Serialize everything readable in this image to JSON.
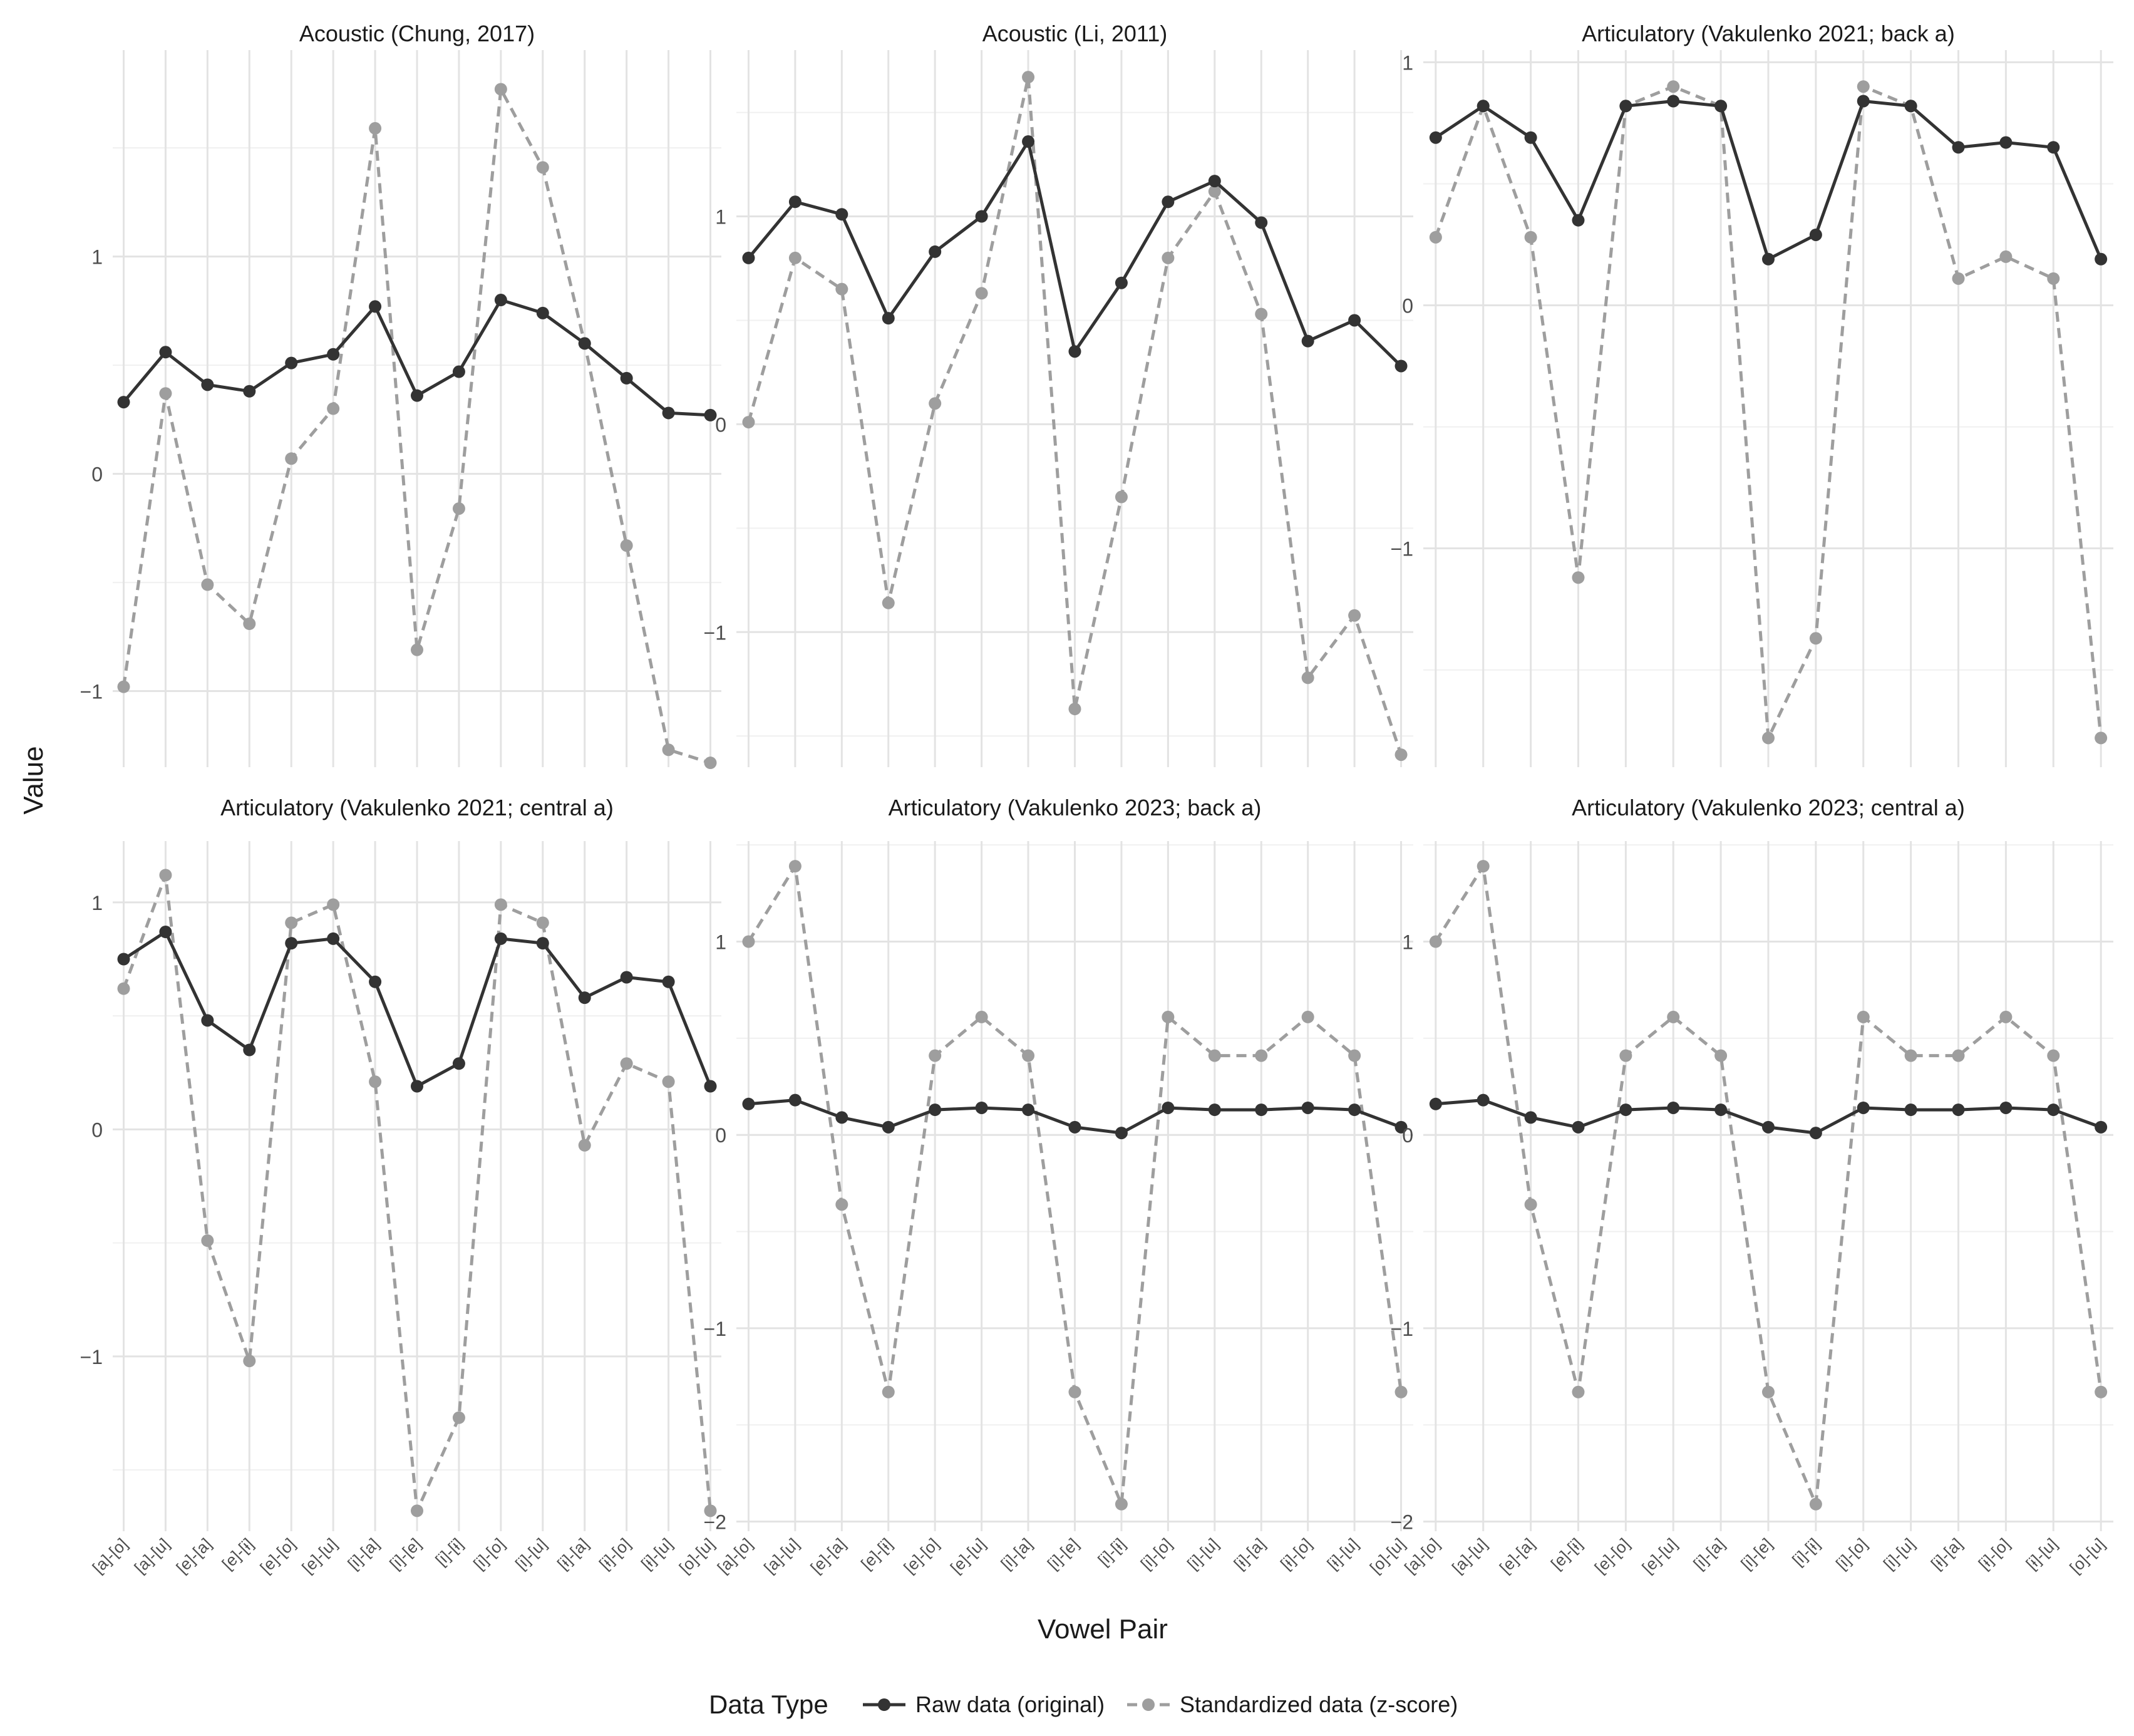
{
  "figure": {
    "ylabel": "Value",
    "xlabel": "Vowel Pair",
    "legend_title": "Data Type",
    "legend": [
      {
        "label": "Raw data (original)",
        "color": "#333333",
        "style": "solid"
      },
      {
        "label": "Standardized data (z-score)",
        "color": "#9e9e9e",
        "style": "dashed"
      }
    ]
  },
  "chart_data": [
    {
      "type": "line",
      "title": "Acoustic (Chung, 2017)",
      "ylim": [
        -1.35,
        1.95
      ],
      "yticks": [
        -1,
        0,
        1
      ],
      "categories": [
        "[a]-[o]",
        "[a]-[u]",
        "[e]-[a]",
        "[e]-[ɨ]",
        "[e]-[o]",
        "[e]-[u]",
        "[i]-[a]",
        "[i]-[e]",
        "[i]-[ɨ]",
        "[i]-[o]",
        "[i]-[u]",
        "[ɨ]-[a]",
        "[ɨ]-[o]",
        "[ɨ]-[u]",
        "[o]-[u]"
      ],
      "show_xticks": false,
      "series": [
        {
          "name": "Raw data (original)",
          "values": [
            0.33,
            0.56,
            0.41,
            0.38,
            0.51,
            0.55,
            0.77,
            0.36,
            0.47,
            0.8,
            0.74,
            0.6,
            0.44,
            0.28,
            0.27
          ]
        },
        {
          "name": "Standardized data (z-score)",
          "values": [
            -0.98,
            0.37,
            -0.51,
            -0.69,
            0.07,
            0.3,
            1.59,
            -0.81,
            -0.16,
            1.77,
            1.41,
            0.6,
            -0.33,
            -1.27,
            -1.33
          ]
        }
      ]
    },
    {
      "type": "line",
      "title": "Acoustic (Li, 2011)",
      "ylim": [
        -1.65,
        1.8
      ],
      "yticks": [
        -1,
        0,
        1
      ],
      "categories": [
        "[a]-[o]",
        "[a]-[u]",
        "[e]-[a]",
        "[e]-[ɨ]",
        "[e]-[o]",
        "[e]-[u]",
        "[i]-[a]",
        "[i]-[e]",
        "[i]-[ɨ]",
        "[i]-[o]",
        "[i]-[u]",
        "[ɨ]-[a]",
        "[ɨ]-[o]",
        "[ɨ]-[u]",
        "[o]-[u]"
      ],
      "show_xticks": false,
      "series": [
        {
          "name": "Raw data (original)",
          "values": [
            0.8,
            1.07,
            1.01,
            0.51,
            0.83,
            1.0,
            1.36,
            0.35,
            0.68,
            1.07,
            1.17,
            0.97,
            0.4,
            0.5,
            0.28
          ]
        },
        {
          "name": "Standardized data (z-score)",
          "values": [
            0.01,
            0.8,
            0.65,
            -0.86,
            0.1,
            0.63,
            1.67,
            -1.37,
            -0.35,
            0.8,
            1.12,
            0.53,
            -1.22,
            -0.92,
            -1.59
          ]
        }
      ]
    },
    {
      "type": "line",
      "title": "Articulatory (Vakulenko 2021; back a)",
      "ylim": [
        -1.9,
        1.05
      ],
      "yticks": [
        -1,
        0,
        1
      ],
      "categories": [
        "[a]-[o]",
        "[a]-[u]",
        "[e]-[a]",
        "[e]-[ɨ]",
        "[e]-[o]",
        "[e]-[u]",
        "[i]-[a]",
        "[i]-[e]",
        "[i]-[ɨ]",
        "[i]-[o]",
        "[i]-[u]",
        "[ɨ]-[a]",
        "[ɨ]-[o]",
        "[ɨ]-[u]",
        "[o]-[u]"
      ],
      "show_xticks": false,
      "series": [
        {
          "name": "Raw data (original)",
          "values": [
            0.69,
            0.82,
            0.69,
            0.35,
            0.82,
            0.84,
            0.82,
            0.19,
            0.29,
            0.84,
            0.82,
            0.65,
            0.67,
            0.65,
            0.19
          ]
        },
        {
          "name": "Standardized data (z-score)",
          "values": [
            0.28,
            0.82,
            0.28,
            -1.12,
            0.82,
            0.9,
            0.82,
            -1.78,
            -1.37,
            0.9,
            0.82,
            0.11,
            0.2,
            0.11,
            -1.78
          ]
        }
      ]
    },
    {
      "type": "line",
      "title": "Articulatory (Vakulenko 2021; central a)",
      "ylim": [
        -1.77,
        1.27
      ],
      "yticks": [
        -1,
        0,
        1
      ],
      "categories": [
        "[a]-[o]",
        "[a]-[u]",
        "[e]-[a]",
        "[e]-[ɨ]",
        "[e]-[o]",
        "[e]-[u]",
        "[i]-[a]",
        "[i]-[e]",
        "[i]-[ɨ]",
        "[i]-[o]",
        "[i]-[u]",
        "[ɨ]-[a]",
        "[ɨ]-[o]",
        "[ɨ]-[u]",
        "[o]-[u]"
      ],
      "show_xticks": true,
      "series": [
        {
          "name": "Raw data (original)",
          "values": [
            0.75,
            0.87,
            0.48,
            0.35,
            0.82,
            0.84,
            0.65,
            0.19,
            0.29,
            0.84,
            0.82,
            0.58,
            0.67,
            0.65,
            0.19
          ]
        },
        {
          "name": "Standardized data (z-score)",
          "values": [
            0.62,
            1.12,
            -0.49,
            -1.02,
            0.91,
            0.99,
            0.21,
            -1.68,
            -1.27,
            0.99,
            0.91,
            -0.07,
            0.29,
            0.21,
            -1.68
          ]
        }
      ]
    },
    {
      "type": "line",
      "title": "Articulatory (Vakulenko 2023; back a)",
      "ylim": [
        -2.05,
        1.52
      ],
      "yticks": [
        -2,
        -1,
        0,
        1
      ],
      "categories": [
        "[a]-[o]",
        "[a]-[u]",
        "[e]-[a]",
        "[e]-[ɨ]",
        "[e]-[o]",
        "[e]-[u]",
        "[i]-[a]",
        "[i]-[e]",
        "[i]-[ɨ]",
        "[i]-[o]",
        "[i]-[u]",
        "[ɨ]-[a]",
        "[ɨ]-[o]",
        "[ɨ]-[u]",
        "[o]-[u]"
      ],
      "show_xticks": true,
      "series": [
        {
          "name": "Raw data (original)",
          "values": [
            0.16,
            0.18,
            0.09,
            0.04,
            0.13,
            0.14,
            0.13,
            0.04,
            0.01,
            0.14,
            0.13,
            0.13,
            0.14,
            0.13,
            0.04
          ]
        },
        {
          "name": "Standardized data (z-score)",
          "values": [
            1.0,
            1.39,
            -0.36,
            -1.33,
            0.41,
            0.61,
            0.41,
            -1.33,
            -1.91,
            0.61,
            0.41,
            0.41,
            0.61,
            0.41,
            -1.33
          ]
        }
      ]
    },
    {
      "type": "line",
      "title": "Articulatory (Vakulenko 2023; central a)",
      "ylim": [
        -2.05,
        1.52
      ],
      "yticks": [
        -2,
        -1,
        0,
        1
      ],
      "categories": [
        "[a]-[o]",
        "[a]-[u]",
        "[e]-[a]",
        "[e]-[ɨ]",
        "[e]-[o]",
        "[e]-[u]",
        "[i]-[a]",
        "[i]-[e]",
        "[i]-[ɨ]",
        "[i]-[o]",
        "[i]-[u]",
        "[ɨ]-[a]",
        "[ɨ]-[o]",
        "[ɨ]-[u]",
        "[o]-[u]"
      ],
      "show_xticks": true,
      "series": [
        {
          "name": "Raw data (original)",
          "values": [
            0.16,
            0.18,
            0.09,
            0.04,
            0.13,
            0.14,
            0.13,
            0.04,
            0.01,
            0.14,
            0.13,
            0.13,
            0.14,
            0.13,
            0.04
          ]
        },
        {
          "name": "Standardized data (z-score)",
          "values": [
            1.0,
            1.39,
            -0.36,
            -1.33,
            0.41,
            0.61,
            0.41,
            -1.33,
            -1.91,
            0.61,
            0.41,
            0.41,
            0.61,
            0.41,
            -1.33
          ]
        }
      ]
    }
  ]
}
